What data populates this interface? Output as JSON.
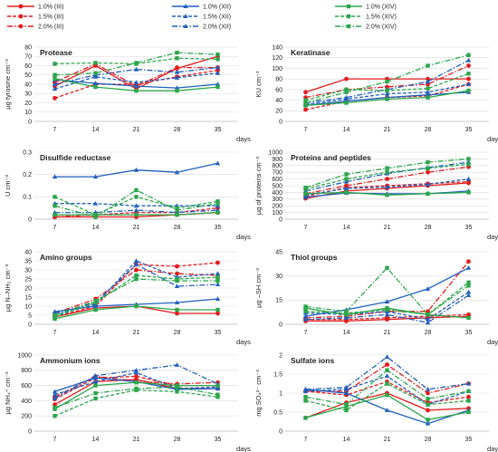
{
  "legend": {
    "columns": [
      {
        "entries": [
          {
            "label": "1.0% (III)",
            "color": "#e31a1c",
            "dash": "solid",
            "marker": "circle"
          },
          {
            "label": "1.5% (III)",
            "color": "#e31a1c",
            "dash": "dash",
            "marker": "circle"
          },
          {
            "label": "2.0% (III)",
            "color": "#e31a1c",
            "dash": "dashdot",
            "marker": "circle"
          }
        ]
      },
      {
        "entries": [
          {
            "label": "1.0% (XII)",
            "color": "#1f5fbf",
            "dash": "solid",
            "marker": "triangle"
          },
          {
            "label": "1.5% (XII)",
            "color": "#1f5fbf",
            "dash": "dash",
            "marker": "triangle"
          },
          {
            "label": "2.0% (XII)",
            "color": "#1f5fbf",
            "dash": "dashdot",
            "marker": "triangle"
          }
        ]
      },
      {
        "entries": [
          {
            "label": "1.0% (XIV)",
            "color": "#2ca64a",
            "dash": "solid",
            "marker": "square"
          },
          {
            "label": "1.5% (XIV)",
            "color": "#2ca64a",
            "dash": "dash",
            "marker": "square"
          },
          {
            "label": "2.0% (XIV)",
            "color": "#2ca64a",
            "dash": "dashdot",
            "marker": "square"
          }
        ]
      }
    ]
  },
  "series_styles": [
    {
      "color": "#e31a1c",
      "dash": "solid",
      "marker": "circle"
    },
    {
      "color": "#e31a1c",
      "dash": "dash",
      "marker": "circle"
    },
    {
      "color": "#e31a1c",
      "dash": "dashdot",
      "marker": "circle"
    },
    {
      "color": "#1f5fbf",
      "dash": "solid",
      "marker": "triangle"
    },
    {
      "color": "#1f5fbf",
      "dash": "dash",
      "marker": "triangle"
    },
    {
      "color": "#1f5fbf",
      "dash": "dashdot",
      "marker": "triangle"
    },
    {
      "color": "#2ca64a",
      "dash": "solid",
      "marker": "square"
    },
    {
      "color": "#2ca64a",
      "dash": "dash",
      "marker": "square"
    },
    {
      "color": "#2ca64a",
      "dash": "dashdot",
      "marker": "square"
    }
  ],
  "chart_data": [
    {
      "type": "line",
      "title": "Protease",
      "ylabel": "µg tyrosine cm⁻³",
      "xlabel": "days",
      "x": [
        7,
        14,
        21,
        28,
        35
      ],
      "ylim": [
        0,
        80
      ],
      "yticks": [
        0,
        10,
        20,
        30,
        40,
        50,
        60,
        70,
        80
      ],
      "series": [
        {
          "name": "1.0% (III)",
          "values": [
            38,
            60,
            35,
            57,
            70
          ]
        },
        {
          "name": "1.5% (III)",
          "values": [
            25,
            40,
            40,
            48,
            55
          ]
        },
        {
          "name": "2.0% (III)",
          "values": [
            42,
            62,
            38,
            58,
            58
          ]
        },
        {
          "name": "1.0% (XII)",
          "values": [
            45,
            41,
            38,
            36,
            40
          ]
        },
        {
          "name": "1.5% (XII)",
          "values": [
            35,
            48,
            42,
            47,
            52
          ]
        },
        {
          "name": "2.0% (XII)",
          "values": [
            40,
            50,
            56,
            53,
            58
          ]
        },
        {
          "name": "1.0% (XIV)",
          "values": [
            46,
            37,
            33,
            33,
            37
          ]
        },
        {
          "name": "1.5% (XIV)",
          "values": [
            62,
            63,
            62,
            68,
            67
          ]
        },
        {
          "name": "2.0% (XIV)",
          "values": [
            50,
            52,
            63,
            74,
            72
          ]
        }
      ]
    },
    {
      "type": "line",
      "title": "Keratinase",
      "ylabel": "KU cm⁻³",
      "xlabel": "days",
      "x": [
        7,
        14,
        21,
        28,
        35
      ],
      "ylim": [
        0,
        140
      ],
      "yticks": [
        0,
        20,
        40,
        60,
        80,
        100,
        120,
        140
      ],
      "series": [
        {
          "name": "1.0% (III)",
          "values": [
            55,
            80,
            80,
            80,
            80
          ]
        },
        {
          "name": "1.5% (III)",
          "values": [
            22,
            38,
            45,
            48,
            70
          ]
        },
        {
          "name": "2.0% (III)",
          "values": [
            45,
            60,
            65,
            70,
            105
          ]
        },
        {
          "name": "1.0% (XII)",
          "values": [
            30,
            38,
            45,
            50,
            55
          ]
        },
        {
          "name": "1.5% (XII)",
          "values": [
            32,
            42,
            52,
            55,
            70
          ]
        },
        {
          "name": "2.0% (XII)",
          "values": [
            35,
            45,
            60,
            75,
            115
          ]
        },
        {
          "name": "1.0% (XIV)",
          "values": [
            30,
            35,
            42,
            45,
            58
          ]
        },
        {
          "name": "1.5% (XIV)",
          "values": [
            40,
            60,
            58,
            62,
            90
          ]
        },
        {
          "name": "2.0% (XIV)",
          "values": [
            35,
            55,
            75,
            105,
            125
          ]
        }
      ]
    },
    {
      "type": "line",
      "title": "Disulfide reductase",
      "ylabel": "U cm⁻³",
      "xlabel": "days",
      "x": [
        7,
        14,
        21,
        28,
        35
      ],
      "ylim": [
        0,
        0.3
      ],
      "yticks": [
        0,
        0.1,
        0.2,
        0.3
      ],
      "series": [
        {
          "name": "1.0% (III)",
          "values": [
            0.01,
            0.01,
            0.01,
            0.02,
            0.03
          ]
        },
        {
          "name": "1.5% (III)",
          "values": [
            0.02,
            0.02,
            0.03,
            0.03,
            0.05
          ]
        },
        {
          "name": "2.0% (III)",
          "values": [
            0.01,
            0.02,
            0.02,
            0.02,
            0.03
          ]
        },
        {
          "name": "1.0% (XII)",
          "values": [
            0.19,
            0.19,
            0.22,
            0.21,
            0.25
          ]
        },
        {
          "name": "1.5% (XII)",
          "values": [
            0.07,
            0.07,
            0.06,
            0.06,
            0.06
          ]
        },
        {
          "name": "2.0% (XII)",
          "values": [
            0.03,
            0.03,
            0.04,
            0.03,
            0.04
          ]
        },
        {
          "name": "1.0% (XIV)",
          "values": [
            0.02,
            0.02,
            0.02,
            0.02,
            0.03
          ]
        },
        {
          "name": "1.5% (XIV)",
          "values": [
            0.1,
            0.02,
            0.1,
            0.05,
            0.08
          ]
        },
        {
          "name": "2.0% (XIV)",
          "values": [
            0.06,
            0.01,
            0.13,
            0.04,
            0.07
          ]
        }
      ]
    },
    {
      "type": "line",
      "title": "Proteins and peptides",
      "ylabel": "µg of proteins cm⁻³",
      "xlabel": "days",
      "x": [
        7,
        14,
        21,
        28,
        35
      ],
      "ylim": [
        0,
        1000
      ],
      "yticks": [
        0,
        100,
        200,
        300,
        400,
        500,
        600,
        700,
        800,
        900,
        1000
      ],
      "series": [
        {
          "name": "1.0% (III)",
          "values": [
            310,
            420,
            460,
            500,
            540
          ]
        },
        {
          "name": "1.5% (III)",
          "values": [
            340,
            470,
            500,
            530,
            560
          ]
        },
        {
          "name": "2.0% (III)",
          "values": [
            380,
            500,
            600,
            700,
            780
          ]
        },
        {
          "name": "1.0% (XII)",
          "values": [
            330,
            390,
            380,
            380,
            420
          ]
        },
        {
          "name": "1.5% (XII)",
          "values": [
            360,
            460,
            480,
            520,
            600
          ]
        },
        {
          "name": "2.0% (XII)",
          "values": [
            420,
            560,
            680,
            770,
            850
          ]
        },
        {
          "name": "1.0% (XIV)",
          "values": [
            380,
            400,
            360,
            380,
            400
          ]
        },
        {
          "name": "1.5% (XIV)",
          "values": [
            450,
            600,
            700,
            760,
            820
          ]
        },
        {
          "name": "2.0% (XIV)",
          "values": [
            470,
            670,
            760,
            850,
            900
          ]
        }
      ]
    },
    {
      "type": "line",
      "title": "Amino groups",
      "ylabel": "µg N–NH₂ cm⁻³",
      "xlabel": "days",
      "x": [
        7,
        14,
        21,
        28,
        35
      ],
      "ylim": [
        0,
        40
      ],
      "yticks": [
        0,
        5,
        10,
        15,
        20,
        25,
        30,
        35,
        40
      ],
      "series": [
        {
          "name": "1.0% (III)",
          "values": [
            4,
            9,
            10,
            6,
            6
          ]
        },
        {
          "name": "1.5% (III)",
          "values": [
            4,
            10,
            33,
            32,
            34
          ]
        },
        {
          "name": "2.0% (III)",
          "values": [
            6,
            14,
            30,
            28,
            27
          ]
        },
        {
          "name": "1.0% (XII)",
          "values": [
            7,
            10,
            11,
            12,
            14
          ]
        },
        {
          "name": "1.5% (XII)",
          "values": [
            5,
            11,
            35,
            26,
            28
          ]
        },
        {
          "name": "2.0% (XII)",
          "values": [
            6,
            12,
            33,
            21,
            22
          ]
        },
        {
          "name": "1.0% (XIV)",
          "values": [
            3,
            8,
            10,
            8,
            8
          ]
        },
        {
          "name": "1.5% (XIV)",
          "values": [
            4,
            12,
            27,
            25,
            26
          ]
        },
        {
          "name": "2.0% (XIV)",
          "values": [
            5,
            13,
            25,
            24,
            24
          ]
        }
      ]
    },
    {
      "type": "line",
      "title": "Thiol groups",
      "ylabel": "µg –SH cm⁻³",
      "xlabel": "days",
      "x": [
        7,
        14,
        21,
        28,
        35
      ],
      "ylim": [
        0,
        45
      ],
      "yticks": [
        0,
        15,
        30,
        45
      ],
      "series": [
        {
          "name": "1.0% (III)",
          "values": [
            2,
            2,
            3,
            4,
            5
          ]
        },
        {
          "name": "1.5% (III)",
          "values": [
            3,
            3,
            4,
            5,
            6
          ]
        },
        {
          "name": "2.0% (III)",
          "values": [
            4,
            5,
            8,
            8,
            39
          ]
        },
        {
          "name": "1.0% (XII)",
          "values": [
            5,
            9,
            14,
            22,
            35
          ]
        },
        {
          "name": "1.5% (XII)",
          "values": [
            7,
            6,
            8,
            3,
            20
          ]
        },
        {
          "name": "2.0% (XII)",
          "values": [
            3,
            4,
            6,
            1,
            18
          ]
        },
        {
          "name": "1.0% (XIV)",
          "values": [
            10,
            6,
            10,
            6,
            4
          ]
        },
        {
          "name": "1.5% (XIV)",
          "values": [
            8,
            7,
            9,
            6,
            26
          ]
        },
        {
          "name": "2.0% (XIV)",
          "values": [
            11,
            8,
            35,
            6,
            24
          ]
        }
      ]
    },
    {
      "type": "line",
      "title": "Ammonium ions",
      "ylabel": "µg NH₄⁺ cm⁻³",
      "xlabel": "days",
      "x": [
        7,
        14,
        21,
        28,
        35
      ],
      "ylim": [
        0,
        1000
      ],
      "yticks": [
        0,
        200,
        400,
        600,
        800,
        1000
      ],
      "series": [
        {
          "name": "1.0% (III)",
          "values": [
            350,
            650,
            680,
            560,
            560
          ]
        },
        {
          "name": "1.5% (III)",
          "values": [
            420,
            700,
            720,
            600,
            600
          ]
        },
        {
          "name": "2.0% (III)",
          "values": [
            450,
            720,
            660,
            620,
            640
          ]
        },
        {
          "name": "1.0% (XII)",
          "values": [
            520,
            700,
            650,
            550,
            560
          ]
        },
        {
          "name": "1.5% (XII)",
          "values": [
            480,
            650,
            770,
            560,
            580
          ]
        },
        {
          "name": "2.0% (XII)",
          "values": [
            430,
            730,
            800,
            870,
            620
          ]
        },
        {
          "name": "1.0% (XIV)",
          "values": [
            290,
            600,
            640,
            600,
            600
          ]
        },
        {
          "name": "1.5% (XIV)",
          "values": [
            200,
            430,
            540,
            520,
            450
          ]
        },
        {
          "name": "2.0% (XIV)",
          "values": [
            310,
            500,
            560,
            580,
            480
          ]
        }
      ]
    },
    {
      "type": "line",
      "title": "Sulfate ions",
      "ylabel": "mg SO₄²⁻ cm⁻³",
      "xlabel": "days",
      "x": [
        7,
        14,
        21,
        28,
        35
      ],
      "ylim": [
        0,
        2
      ],
      "yticks": [
        0,
        0.5,
        1,
        1.5,
        2
      ],
      "series": [
        {
          "name": "1.0% (III)",
          "values": [
            0.35,
            0.75,
            1.0,
            0.55,
            0.6
          ]
        },
        {
          "name": "1.5% (III)",
          "values": [
            1.05,
            0.95,
            1.3,
            0.75,
            0.9
          ]
        },
        {
          "name": "2.0% (III)",
          "values": [
            1.05,
            1.05,
            1.75,
            1.0,
            1.25
          ]
        },
        {
          "name": "1.0% (XII)",
          "values": [
            1.1,
            1.0,
            0.55,
            0.2,
            0.55
          ]
        },
        {
          "name": "1.5% (XII)",
          "values": [
            1.05,
            1.1,
            1.45,
            0.7,
            1.05
          ]
        },
        {
          "name": "2.0% (XII)",
          "values": [
            1.1,
            1.15,
            1.95,
            1.1,
            1.25
          ]
        },
        {
          "name": "1.0% (XIV)",
          "values": [
            0.35,
            0.65,
            0.95,
            0.3,
            0.5
          ]
        },
        {
          "name": "1.5% (XIV)",
          "values": [
            0.8,
            0.55,
            1.25,
            0.7,
            0.8
          ]
        },
        {
          "name": "2.0% (XIV)",
          "values": [
            0.9,
            0.7,
            1.6,
            0.85,
            1.05
          ]
        }
      ]
    }
  ]
}
